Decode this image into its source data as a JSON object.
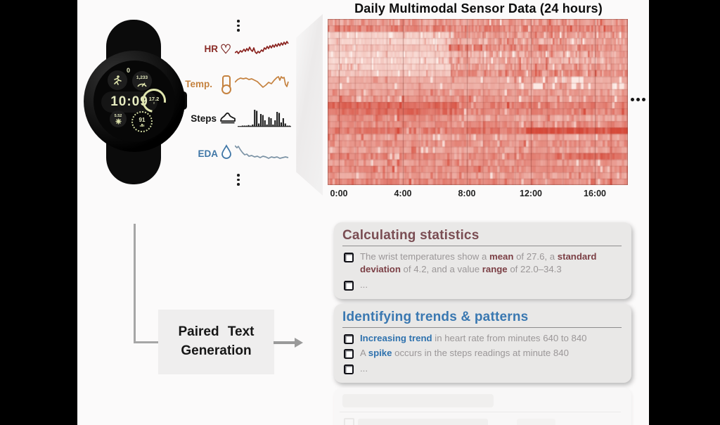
{
  "title": "Daily Multimodal Sensor Data (24 hours)",
  "watch": {
    "time": "10:09",
    "activity_value": "0",
    "steps_gauge": "1,233",
    "temp_value": "17.2",
    "small_value": "5.52",
    "heart_rate": "91"
  },
  "sensors": {
    "rows": [
      {
        "label": "HR",
        "icon": "heart-icon",
        "color": "#8a2b26"
      },
      {
        "label": "Temp.",
        "icon": "thermometer-icon",
        "color": "#c5823f"
      },
      {
        "label": "Steps",
        "icon": "shoe-icon",
        "color": "#141414"
      },
      {
        "label": "EDA",
        "icon": "droplet-icon",
        "color": "#3f76a6"
      }
    ]
  },
  "heatmap": {
    "x_ticks": [
      "0:00",
      "4:00",
      "8:00",
      "12:00",
      "16:00"
    ],
    "continues": "more data to the right (ellipsis dots)"
  },
  "chart_data": {
    "type": "heatmap",
    "title": "Daily Multimodal Sensor Data (24 hours)",
    "x_tick_labels": [
      "0:00",
      "4:00",
      "8:00",
      "12:00",
      "16:00"
    ],
    "x_axis_note": "time of day, about 18.5 of 24 hours visible, continues right",
    "n_rows": 26,
    "seed": 77,
    "palette": {
      "low": "#fdeee9",
      "high": "#d64a3a",
      "gap": "#ffffff"
    },
    "row_intensity": [
      0.5,
      0.62,
      0.45,
      0.4,
      0.58,
      0.42,
      0.38,
      0.46,
      0.55,
      0.42,
      0.42,
      0.48,
      0.52,
      0.66,
      0.62,
      0.44,
      0.58,
      0.7,
      0.46,
      0.55,
      0.48,
      0.62,
      0.52,
      0.58,
      0.5,
      0.6
    ],
    "features": [
      "pale block in upper-left rows before ~07:00",
      "uniform salmon band near one-third height with white gaps around 13:00-17:00",
      "darker left half in middle rows",
      "dark red streak lower-right after ~13:00"
    ],
    "sparklines": {
      "hr": {
        "color": "#8b2420",
        "points": [
          0,
          17,
          3,
          15,
          5,
          18,
          8,
          14,
          10,
          16,
          13,
          12,
          15,
          15,
          17,
          11,
          19,
          14,
          21,
          9,
          23,
          13,
          25,
          15,
          27,
          10,
          29,
          16,
          31,
          18,
          33,
          15,
          35,
          17,
          38,
          13,
          40,
          15,
          42,
          10,
          44,
          12,
          46,
          8,
          48,
          11,
          50,
          7,
          52,
          10,
          54,
          6,
          56,
          9,
          58,
          5,
          60,
          8,
          62,
          4,
          64,
          7,
          66,
          3,
          68,
          6,
          70,
          2,
          72,
          5,
          74,
          1,
          76,
          4
        ]
      },
      "temp": {
        "color": "#c5823f",
        "points": [
          0,
          13,
          4,
          9,
          8,
          7,
          12,
          8,
          16,
          7,
          20,
          9,
          24,
          8,
          28,
          10,
          32,
          12,
          36,
          16,
          40,
          20,
          44,
          17,
          48,
          13,
          52,
          15,
          56,
          10,
          60,
          6,
          62,
          5,
          64,
          10,
          66,
          5,
          68,
          7,
          70,
          6,
          72,
          16,
          74,
          19,
          76,
          12
        ]
      },
      "eda": {
        "color": "#7d94a6",
        "points": [
          0,
          3,
          3,
          6,
          5,
          4,
          8,
          9,
          11,
          13,
          14,
          16,
          17,
          15,
          20,
          18,
          24,
          17,
          28,
          19,
          32,
          18,
          36,
          20,
          40,
          18,
          44,
          19,
          48,
          21,
          52,
          19,
          56,
          20,
          60,
          19,
          64,
          21,
          68,
          20,
          72,
          19,
          76,
          20
        ]
      },
      "steps_bars": {
        "color": "#1a1a1a",
        "heights": [
          0.5,
          0.5,
          1,
          1,
          1,
          1.5,
          1,
          2,
          16,
          15,
          3,
          12,
          11,
          6,
          2,
          9,
          8,
          2,
          6,
          14,
          13,
          4,
          8,
          3,
          1,
          1
        ]
      }
    }
  },
  "flow": {
    "box_line1": "Paired Text",
    "box_line2": "Generation"
  },
  "cards": [
    {
      "title": "Calculating statistics",
      "title_color": "#7a4d53",
      "accent": "#7c4046",
      "bullets": [
        [
          {
            "t": "The wrist temperatures show a "
          },
          {
            "t": "mean",
            "b": true
          },
          {
            "t": " of 27.6, a "
          },
          {
            "t": "standard deviation",
            "b": true
          },
          {
            "t": " of 4.2, and a value "
          },
          {
            "t": "range",
            "b": true
          },
          {
            "t": " of 22.0–34.3"
          }
        ],
        [
          {
            "t": "..."
          }
        ]
      ]
    },
    {
      "title": "Identifying trends & patterns",
      "title_color": "#3a78b1",
      "accent": "#2f72ae",
      "bullets": [
        [
          {
            "t": "Increasing trend",
            "b": true
          },
          {
            "t": " in heart rate from minutes 640 to 840"
          }
        ],
        [
          {
            "t": "A "
          },
          {
            "t": "spike",
            "b": true
          },
          {
            "t": " occurs in the steps readings at minute 840"
          }
        ],
        [
          {
            "t": "..."
          }
        ]
      ]
    }
  ]
}
